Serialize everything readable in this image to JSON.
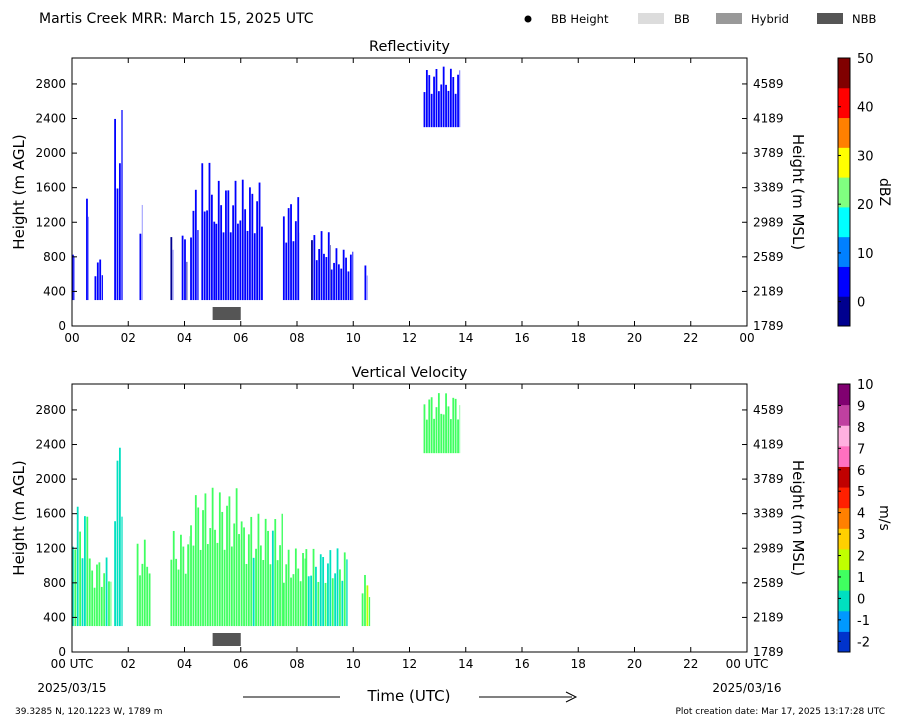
{
  "header": {
    "title": "Martis Creek MRR:  March 15, 2025 UTC",
    "legend": [
      {
        "label": "BB Height",
        "kind": "dot",
        "color": "#000000"
      },
      {
        "label": "BB",
        "kind": "box",
        "color": "#dcdcdc"
      },
      {
        "label": "Hybrid",
        "kind": "box",
        "color": "#999999"
      },
      {
        "label": "NBB",
        "kind": "box",
        "color": "#555555"
      }
    ]
  },
  "footer": {
    "coords": "39.3285 N, 120.1223 W, 1789 m",
    "creation": "Plot creation date: Mar 17, 2025 13:17:28 UTC",
    "xlabel": "Time (UTC)",
    "start_date": "2025/03/15",
    "end_date": "2025/03/16"
  },
  "chart_data": [
    {
      "type": "heatmap",
      "title": "Reflectivity",
      "ylabel": "Height (m AGL)",
      "y2label": "Height (m MSL)",
      "xlim": [
        0,
        24
      ],
      "ylim": [
        0,
        3100
      ],
      "xticks": [
        "00",
        "02",
        "04",
        "06",
        "08",
        "10",
        "12",
        "14",
        "16",
        "18",
        "20",
        "22",
        "00"
      ],
      "yticks": [
        0,
        400,
        800,
        1200,
        1600,
        2000,
        2400,
        2800
      ],
      "y2ticks": [
        1789,
        2189,
        2589,
        2989,
        3389,
        3789,
        4189,
        4589
      ],
      "colorbar": {
        "label": "dBZ",
        "range": [
          -5,
          50
        ],
        "ticks": [
          0,
          10,
          20,
          30,
          40,
          50
        ],
        "colors": [
          "#00008f",
          "#0000ff",
          "#0080ff",
          "#00ffff",
          "#80ff80",
          "#ffff00",
          "#ff8000",
          "#ff0000",
          "#800000"
        ]
      },
      "cells": [
        {
          "t0": 0.0,
          "t1": 0.1,
          "h0": 300,
          "h1": 1100,
          "v": 3
        },
        {
          "t0": 0.5,
          "t1": 0.6,
          "h0": 300,
          "h1": 1500,
          "v": 3
        },
        {
          "t0": 0.8,
          "t1": 1.1,
          "h0": 300,
          "h1": 800,
          "v": 4
        },
        {
          "t0": 1.5,
          "t1": 1.8,
          "h0": 300,
          "h1": 2500,
          "v": 6
        },
        {
          "t0": 2.4,
          "t1": 2.5,
          "h0": 300,
          "h1": 1400,
          "v": 4
        },
        {
          "t0": 3.5,
          "t1": 3.6,
          "h0": 300,
          "h1": 1300,
          "v": 2
        },
        {
          "t0": 3.9,
          "t1": 4.1,
          "h0": 300,
          "h1": 1100,
          "v": 2
        },
        {
          "t0": 4.2,
          "t1": 4.5,
          "h0": 300,
          "h1": 1600,
          "v": 5
        },
        {
          "t0": 4.6,
          "t1": 5.1,
          "h0": 300,
          "h1": 1900,
          "v": 6
        },
        {
          "t0": 5.1,
          "t1": 6.8,
          "h0": 300,
          "h1": 1700,
          "v": 4
        },
        {
          "t0": 7.5,
          "t1": 8.1,
          "h0": 300,
          "h1": 1500,
          "v": 4
        },
        {
          "t0": 8.5,
          "t1": 9.2,
          "h0": 300,
          "h1": 1100,
          "v": 2
        },
        {
          "t0": 9.2,
          "t1": 10.0,
          "h0": 300,
          "h1": 900,
          "v": 3
        },
        {
          "t0": 10.4,
          "t1": 10.5,
          "h0": 300,
          "h1": 700,
          "v": 2
        },
        {
          "t0": 12.5,
          "t1": 13.8,
          "h0": 2300,
          "h1": 3000,
          "v": 5
        }
      ],
      "nbb": [
        5.0,
        6.0
      ]
    },
    {
      "type": "heatmap",
      "title": "Vertical Velocity",
      "ylabel": "Height (m AGL)",
      "y2label": "Height (m MSL)",
      "xlim": [
        0,
        24
      ],
      "ylim": [
        0,
        3100
      ],
      "xticks": [
        "00 UTC",
        "02",
        "04",
        "06",
        "08",
        "10",
        "12",
        "14",
        "16",
        "18",
        "20",
        "22",
        "00 UTC"
      ],
      "yticks": [
        0,
        400,
        800,
        1200,
        1600,
        2000,
        2400,
        2800
      ],
      "y2ticks": [
        1789,
        2189,
        2589,
        2989,
        3389,
        3789,
        4189,
        4589
      ],
      "colorbar": {
        "label": "m/s",
        "range": [
          -2.5,
          10
        ],
        "ticks": [
          -2,
          -1,
          0,
          1,
          2,
          3,
          4,
          5,
          6,
          7,
          8,
          9,
          10
        ],
        "colors": [
          "#0033cc",
          "#0099ff",
          "#00e0c0",
          "#40ff60",
          "#c0ff00",
          "#ffd000",
          "#ff8000",
          "#ff2000",
          "#c00000",
          "#ff70c0",
          "#ffb0e0",
          "#c040a0",
          "#800070"
        ]
      },
      "cells": [
        {
          "t0": 0.0,
          "t1": 0.6,
          "h0": 300,
          "h1": 1700,
          "v": 0.3
        },
        {
          "t0": 0.6,
          "t1": 1.4,
          "h0": 300,
          "h1": 1100,
          "v": 0.6
        },
        {
          "t0": 1.5,
          "t1": 1.8,
          "h0": 300,
          "h1": 2500,
          "v": -0.3
        },
        {
          "t0": 2.3,
          "t1": 2.8,
          "h0": 300,
          "h1": 1300,
          "v": 0.8
        },
        {
          "t0": 3.5,
          "t1": 4.2,
          "h0": 300,
          "h1": 1400,
          "v": 0.7
        },
        {
          "t0": 4.2,
          "t1": 6.0,
          "h0": 300,
          "h1": 1900,
          "v": 1.1
        },
        {
          "t0": 6.0,
          "t1": 7.5,
          "h0": 300,
          "h1": 1600,
          "v": 0.6
        },
        {
          "t0": 7.5,
          "t1": 8.3,
          "h0": 300,
          "h1": 1200,
          "v": 0.9
        },
        {
          "t0": 8.3,
          "t1": 9.8,
          "h0": 300,
          "h1": 1200,
          "v": 0.3
        },
        {
          "t0": 10.3,
          "t1": 10.6,
          "h0": 300,
          "h1": 900,
          "v": 1.2
        },
        {
          "t0": 12.5,
          "t1": 13.8,
          "h0": 2300,
          "h1": 3000,
          "v": 1.0
        }
      ],
      "nbb": [
        5.0,
        6.0
      ]
    }
  ]
}
